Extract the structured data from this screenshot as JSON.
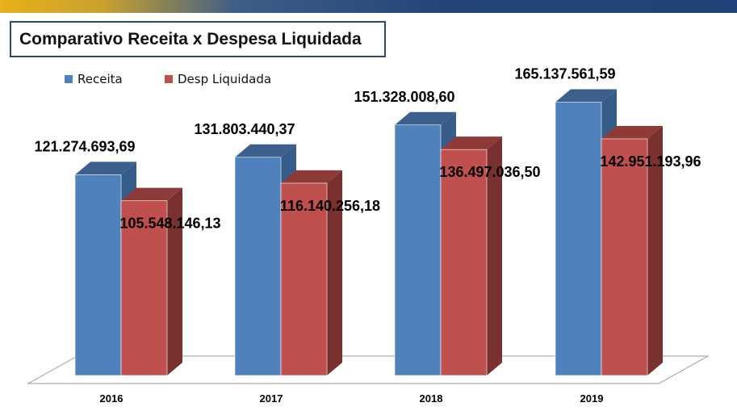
{
  "chart_data": {
    "type": "bar",
    "title": "Comparativo Receita x Despesa Liquidada",
    "categories": [
      "2016",
      "2017",
      "2018",
      "2019"
    ],
    "series": [
      {
        "name": "Receita",
        "color": "#4f81bd",
        "values": [
          121274693.69,
          131803440.37,
          151328008.6,
          165137561.59
        ],
        "labels": [
          "121.274.693,69",
          "131.803.440,37",
          "151.328.008,60",
          "165.137.561,59"
        ]
      },
      {
        "name": "Desp Liquidada",
        "color": "#c0504d",
        "values": [
          105548146.13,
          116140256.18,
          136497036.5,
          142951193.96
        ],
        "labels": [
          "105.548.146,13",
          "116.140.256,18",
          "136.497.036,50",
          "142.951.193,96"
        ]
      }
    ],
    "xlabel": "",
    "ylabel": "",
    "ylim": [
      0,
      180000000
    ],
    "grid": false,
    "legend_position": "top-left",
    "bar_style": "3d-column"
  }
}
